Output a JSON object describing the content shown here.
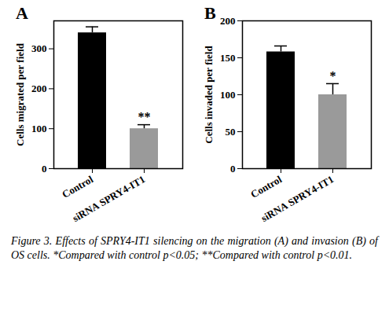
{
  "chart_data": [
    {
      "type": "bar",
      "title": "A",
      "categories": [
        "Control",
        "siRNA SPRY4-IT1"
      ],
      "values": [
        340,
        100
      ],
      "errors": [
        15,
        10
      ],
      "annotations": [
        null,
        "**"
      ],
      "colors": [
        "#000000",
        "#9a9a9a"
      ],
      "y_label": "Cells migrated per field",
      "ylim": [
        0,
        370
      ],
      "yticks": [
        0,
        100,
        200,
        300
      ]
    },
    {
      "type": "bar",
      "title": "B",
      "categories": [
        "Control",
        "siRNA SPRY4-IT1"
      ],
      "values": [
        158,
        100
      ],
      "errors": [
        8,
        15
      ],
      "annotations": [
        null,
        "*"
      ],
      "colors": [
        "#000000",
        "#9a9a9a"
      ],
      "y_label": "Cells invaded per field",
      "ylim": [
        0,
        200
      ],
      "yticks": [
        0,
        50,
        100,
        150,
        200
      ]
    }
  ],
  "caption": "Figure 3. Effects of SPRY4-IT1 silencing on the migration (A) and invasion (B) of OS cells. *Compared with control p<0.05; **Compared with control p<0.01."
}
